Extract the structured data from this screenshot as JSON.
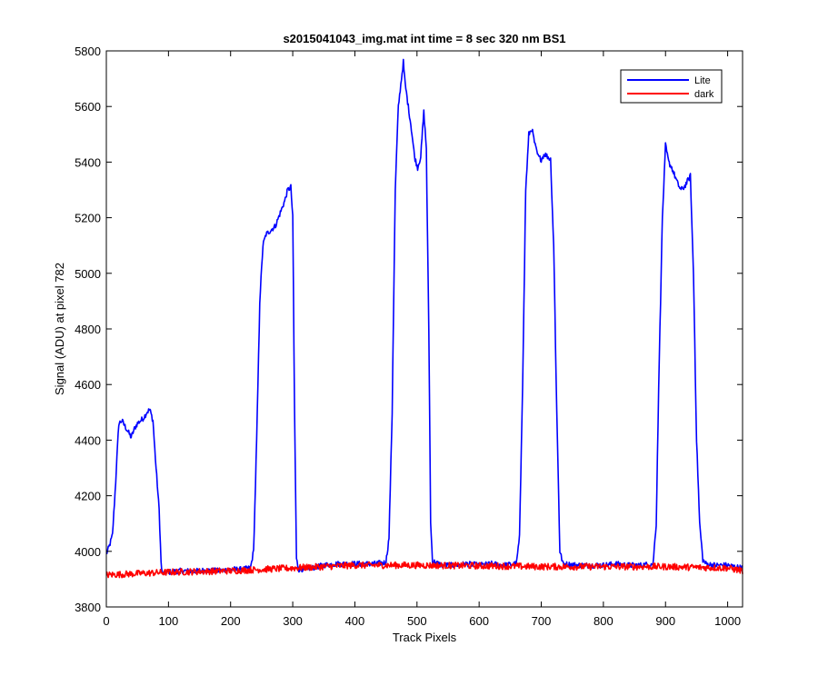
{
  "chart_data": {
    "type": "line",
    "title": "s2015041043_img.mat int time = 8 sec  320 nm BS1",
    "xlabel": "Track Pixels",
    "ylabel": "Signal (ADU) at pixel 782",
    "xlim": [
      0,
      1024
    ],
    "ylim": [
      3800,
      5800
    ],
    "xticks": [
      0,
      100,
      200,
      300,
      400,
      500,
      600,
      700,
      800,
      900,
      1000
    ],
    "yticks": [
      3800,
      4000,
      4200,
      4400,
      4600,
      4800,
      5000,
      5200,
      5400,
      5600,
      5800
    ],
    "grid": false,
    "legend_position": "top-right",
    "series": [
      {
        "name": "Lite",
        "color": "#0000ff",
        "points": [
          [
            0,
            3990
          ],
          [
            5,
            4020
          ],
          [
            10,
            4060
          ],
          [
            15,
            4250
          ],
          [
            20,
            4460
          ],
          [
            25,
            4470
          ],
          [
            30,
            4450
          ],
          [
            35,
            4430
          ],
          [
            40,
            4410
          ],
          [
            45,
            4440
          ],
          [
            50,
            4460
          ],
          [
            55,
            4470
          ],
          [
            60,
            4480
          ],
          [
            65,
            4500
          ],
          [
            70,
            4510
          ],
          [
            75,
            4470
          ],
          [
            80,
            4300
          ],
          [
            85,
            4150
          ],
          [
            88,
            3960
          ],
          [
            90,
            3920
          ],
          [
            100,
            3925
          ],
          [
            120,
            3930
          ],
          [
            140,
            3928
          ],
          [
            160,
            3932
          ],
          [
            180,
            3930
          ],
          [
            200,
            3935
          ],
          [
            220,
            3935
          ],
          [
            232,
            3940
          ],
          [
            237,
            4000
          ],
          [
            242,
            4400
          ],
          [
            247,
            4900
          ],
          [
            252,
            5100
          ],
          [
            257,
            5140
          ],
          [
            262,
            5150
          ],
          [
            267,
            5160
          ],
          [
            272,
            5170
          ],
          [
            277,
            5200
          ],
          [
            282,
            5230
          ],
          [
            287,
            5260
          ],
          [
            292,
            5300
          ],
          [
            297,
            5310
          ],
          [
            300,
            5200
          ],
          [
            303,
            4500
          ],
          [
            306,
            3970
          ],
          [
            310,
            3935
          ],
          [
            330,
            3940
          ],
          [
            350,
            3950
          ],
          [
            370,
            3955
          ],
          [
            390,
            3955
          ],
          [
            410,
            3955
          ],
          [
            430,
            3955
          ],
          [
            450,
            3960
          ],
          [
            455,
            4050
          ],
          [
            460,
            4500
          ],
          [
            465,
            5300
          ],
          [
            470,
            5600
          ],
          [
            475,
            5700
          ],
          [
            478,
            5760
          ],
          [
            481,
            5680
          ],
          [
            486,
            5600
          ],
          [
            491,
            5520
          ],
          [
            496,
            5420
          ],
          [
            501,
            5380
          ],
          [
            506,
            5420
          ],
          [
            511,
            5580
          ],
          [
            515,
            5450
          ],
          [
            519,
            4800
          ],
          [
            522,
            4100
          ],
          [
            525,
            3965
          ],
          [
            540,
            3950
          ],
          [
            560,
            3950
          ],
          [
            580,
            3955
          ],
          [
            600,
            3950
          ],
          [
            620,
            3955
          ],
          [
            640,
            3950
          ],
          [
            660,
            3955
          ],
          [
            665,
            4050
          ],
          [
            670,
            4600
          ],
          [
            675,
            5300
          ],
          [
            680,
            5500
          ],
          [
            685,
            5520
          ],
          [
            690,
            5460
          ],
          [
            695,
            5420
          ],
          [
            700,
            5410
          ],
          [
            705,
            5430
          ],
          [
            710,
            5420
          ],
          [
            715,
            5410
          ],
          [
            720,
            5100
          ],
          [
            725,
            4500
          ],
          [
            730,
            4000
          ],
          [
            735,
            3955
          ],
          [
            760,
            3950
          ],
          [
            780,
            3950
          ],
          [
            800,
            3950
          ],
          [
            820,
            3955
          ],
          [
            840,
            3950
          ],
          [
            860,
            3950
          ],
          [
            880,
            3955
          ],
          [
            885,
            4100
          ],
          [
            890,
            4700
          ],
          [
            895,
            5200
          ],
          [
            900,
            5460
          ],
          [
            905,
            5400
          ],
          [
            910,
            5380
          ],
          [
            915,
            5350
          ],
          [
            920,
            5320
          ],
          [
            925,
            5300
          ],
          [
            930,
            5310
          ],
          [
            935,
            5330
          ],
          [
            940,
            5350
          ],
          [
            945,
            5000
          ],
          [
            950,
            4400
          ],
          [
            955,
            4100
          ],
          [
            960,
            3970
          ],
          [
            965,
            3955
          ],
          [
            980,
            3950
          ],
          [
            1000,
            3950
          ],
          [
            1010,
            3945
          ],
          [
            1024,
            3940
          ]
        ]
      },
      {
        "name": "dark",
        "color": "#ff0000",
        "points": [
          [
            0,
            3915
          ],
          [
            100,
            3925
          ],
          [
            200,
            3930
          ],
          [
            300,
            3940
          ],
          [
            400,
            3950
          ],
          [
            500,
            3950
          ],
          [
            600,
            3948
          ],
          [
            700,
            3945
          ],
          [
            800,
            3945
          ],
          [
            900,
            3945
          ],
          [
            1000,
            3940
          ],
          [
            1024,
            3930
          ]
        ]
      }
    ]
  }
}
